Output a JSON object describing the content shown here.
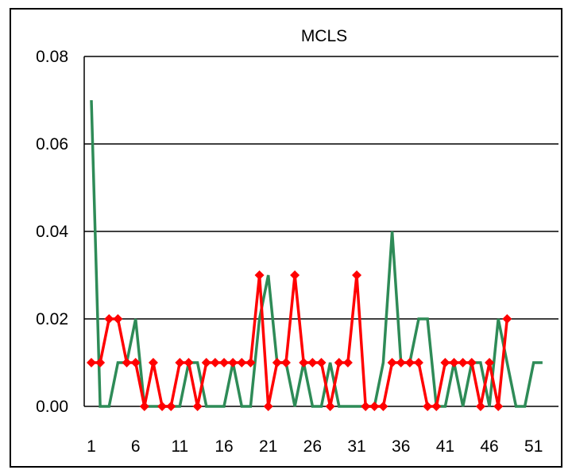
{
  "chart_data": {
    "type": "line",
    "title": "MCLS",
    "xlabel": "",
    "ylabel": "",
    "ylim": [
      0,
      0.08
    ],
    "yticks": [
      "0.00",
      "0.02",
      "0.04",
      "0.06",
      "0.08"
    ],
    "ytick_values": [
      0,
      0.02,
      0.04,
      0.06,
      0.08
    ],
    "x": [
      1,
      2,
      3,
      4,
      5,
      6,
      7,
      8,
      9,
      10,
      11,
      12,
      13,
      14,
      15,
      16,
      17,
      18,
      19,
      20,
      21,
      22,
      23,
      24,
      25,
      26,
      27,
      28,
      29,
      30,
      31,
      32,
      33,
      34,
      35,
      36,
      37,
      38,
      39,
      40,
      41,
      42,
      43,
      44,
      45,
      46,
      47,
      48,
      49,
      50,
      51,
      52,
      53
    ],
    "xticks": [
      "1",
      "6",
      "11",
      "16",
      "21",
      "26",
      "31",
      "36",
      "41",
      "46",
      "51"
    ],
    "xtick_values": [
      1,
      6,
      11,
      16,
      21,
      26,
      31,
      36,
      41,
      46,
      51
    ],
    "grid": true,
    "legend": "none",
    "series": [
      {
        "color": "#2e8b57",
        "marker": "none",
        "values": [
          0.07,
          0,
          0,
          0.01,
          0.01,
          0.02,
          0,
          0,
          0,
          0,
          0,
          0.01,
          0.01,
          0,
          0,
          0,
          0.01,
          0,
          0,
          0.02,
          0.03,
          0.01,
          0.01,
          0,
          0.01,
          0,
          0,
          0.01,
          0,
          0,
          0,
          0,
          0,
          0.01,
          0.04,
          0.01,
          0.01,
          0.02,
          0.02,
          0,
          0,
          0.01,
          0,
          0.01,
          0.01,
          0,
          0.02,
          0.01,
          0,
          0,
          0.01,
          0.01,
          null
        ]
      },
      {
        "color": "#ff0000",
        "marker": "diamond",
        "values": [
          0.01,
          0.01,
          0.02,
          0.02,
          0.01,
          0.01,
          0,
          0.01,
          0,
          0,
          0.01,
          0.01,
          0,
          0.01,
          0.01,
          0.01,
          0.01,
          0.01,
          0.01,
          0.03,
          0,
          0.01,
          0.01,
          0.03,
          0.01,
          0.01,
          0.01,
          0,
          0.01,
          0.01,
          0.03,
          0,
          0,
          0,
          0.01,
          0.01,
          0.01,
          0.01,
          0,
          0,
          0.01,
          0.01,
          0.01,
          0.01,
          0,
          0.01,
          0,
          0.02,
          null,
          null,
          null,
          null,
          null
        ]
      }
    ]
  }
}
